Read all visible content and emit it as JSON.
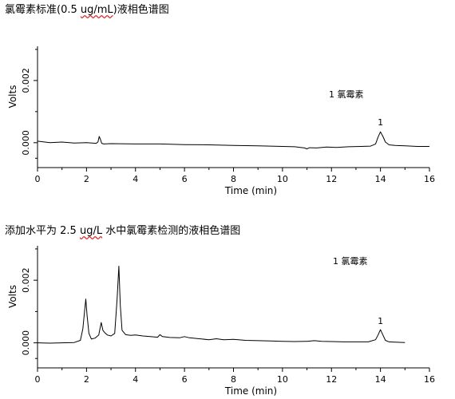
{
  "chart_data": [
    {
      "type": "line",
      "title": {
        "prefix": "氯霉素标准(0.5 ",
        "unit": "ug/mL",
        "suffix": ")液相色谱图"
      },
      "xlabel": "Time (min)",
      "ylabel": "Volts",
      "xlim": [
        0,
        16
      ],
      "ylim": [
        -0.0008,
        0.0031
      ],
      "xticks": [
        "0",
        "2",
        "4",
        "6",
        "8",
        "10",
        "12",
        "14",
        "16"
      ],
      "yticks": [
        {
          "value": 0.0,
          "label": "0.000"
        },
        {
          "value": 0.002,
          "label": "0.002"
        }
      ],
      "legend": "1 氯霉素",
      "peak_label": {
        "text": "1",
        "x": 14.0,
        "y": 0.0004
      },
      "series": [
        {
          "x": [
            0.0,
            0.5,
            1.0,
            1.5,
            2.0,
            2.4,
            2.47,
            2.52,
            2.57,
            2.62,
            2.7,
            3.0,
            4.0,
            5.0,
            6.0,
            7.0,
            8.0,
            9.0,
            10.0,
            10.5,
            10.9,
            11.0,
            11.1,
            11.4,
            11.8,
            12.2,
            12.7,
            13.2,
            13.6,
            13.8,
            13.9,
            14.0,
            14.1,
            14.2,
            14.35,
            14.6,
            15.0,
            15.5,
            16.0
          ],
          "y": [
            5e-05,
            0.0,
            2e-05,
            -1e-05,
            0.0,
            -2e-05,
            3e-05,
            0.0002,
            0.0001,
            -2e-05,
            -4e-05,
            -3e-05,
            -4e-05,
            -4e-05,
            -6e-05,
            -7e-05,
            -9e-05,
            -0.0001,
            -0.00012,
            -0.00013,
            -0.00017,
            -0.0002,
            -0.00016,
            -0.00017,
            -0.00014,
            -0.00015,
            -0.00013,
            -0.00012,
            -0.00011,
            -4e-05,
            0.00018,
            0.00035,
            0.0002,
            2e-05,
            -7e-05,
            -9e-05,
            -0.0001,
            -0.00012,
            -0.00012
          ]
        }
      ]
    },
    {
      "type": "line",
      "title": {
        "prefix": "添加水平为 2.5 ",
        "unit": "ug/L",
        "suffix": " 水中氯霉素检测的液相色谱图"
      },
      "xlabel": "Time (min)",
      "ylabel": "Volts",
      "xlim": [
        0,
        16
      ],
      "ylim": [
        -0.0008,
        0.0031
      ],
      "xticks": [
        "0",
        "2",
        "4",
        "6",
        "8",
        "10",
        "12",
        "14",
        "16"
      ],
      "yticks": [
        {
          "value": 0.0,
          "label": "0.000"
        },
        {
          "value": 0.002,
          "label": "0.002"
        }
      ],
      "legend": "1 氯霉素",
      "peak_label": {
        "text": "1",
        "x": 14.0,
        "y": 0.00045
      },
      "series": [
        {
          "x": [
            0.0,
            0.5,
            1.0,
            1.5,
            1.75,
            1.85,
            1.92,
            1.97,
            2.02,
            2.1,
            2.2,
            2.35,
            2.5,
            2.6,
            2.67,
            2.75,
            2.85,
            3.0,
            3.15,
            3.25,
            3.32,
            3.38,
            3.45,
            3.6,
            3.8,
            4.0,
            4.3,
            4.6,
            4.9,
            5.0,
            5.1,
            5.4,
            5.8,
            6.0,
            6.2,
            6.6,
            7.0,
            7.3,
            7.6,
            8.0,
            8.5,
            9.0,
            9.5,
            10.0,
            10.5,
            11.0,
            11.3,
            11.6,
            12.0,
            12.5,
            13.0,
            13.5,
            13.8,
            13.9,
            14.0,
            14.1,
            14.2,
            14.35,
            14.6,
            15.0
          ],
          "y": [
            0.0,
            -1e-05,
            0.0,
            1e-05,
            8e-05,
            0.00045,
            0.001,
            0.0014,
            0.0009,
            0.0003,
            0.00012,
            0.00015,
            0.00025,
            0.00065,
            0.0004,
            0.00032,
            0.00025,
            0.00022,
            0.0003,
            0.0014,
            0.00245,
            0.0012,
            0.0004,
            0.00026,
            0.00024,
            0.00025,
            0.00022,
            0.0002,
            0.00018,
            0.00026,
            0.0002,
            0.00017,
            0.00016,
            0.0002,
            0.00016,
            0.00013,
            0.0001,
            0.00013,
            0.0001,
            0.00011,
            8e-05,
            7e-05,
            6e-05,
            5e-05,
            4e-05,
            5e-05,
            7e-05,
            5e-05,
            4e-05,
            3e-05,
            3e-05,
            3e-05,
            0.0001,
            0.00025,
            0.00042,
            0.00025,
            8e-05,
            3e-05,
            2e-05,
            1e-05
          ]
        }
      ]
    }
  ]
}
